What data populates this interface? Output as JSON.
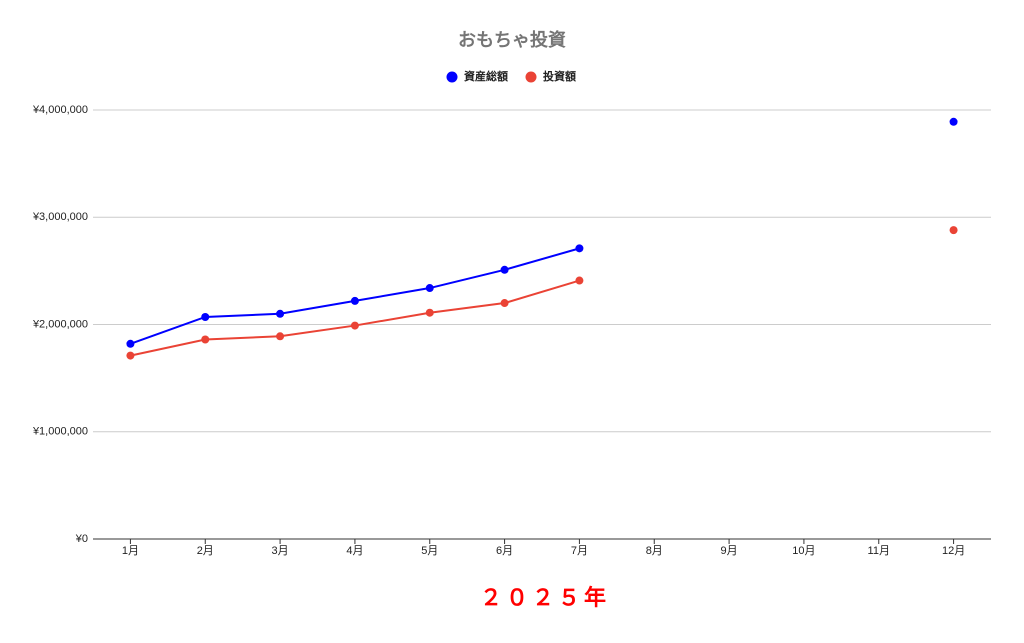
{
  "chart_data": {
    "type": "line",
    "title": "おもちゃ投資",
    "x_label": "２０２５年",
    "categories": [
      "1月",
      "2月",
      "3月",
      "4月",
      "5月",
      "6月",
      "7月",
      "8月",
      "9月",
      "10月",
      "11月",
      "12月"
    ],
    "series": [
      {
        "name": "資産総額",
        "color": "#0000ff",
        "values": [
          1820000,
          2070000,
          2100000,
          2220000,
          2340000,
          2510000,
          2710000,
          null,
          null,
          null,
          null,
          3890000
        ]
      },
      {
        "name": "投資額",
        "color": "#ea4335",
        "values": [
          1710000,
          1860000,
          1890000,
          1990000,
          2110000,
          2200000,
          2410000,
          null,
          null,
          null,
          null,
          2880000
        ]
      }
    ],
    "ylim": [
      0,
      4000000
    ],
    "yticks": [
      {
        "value": 0,
        "label": "¥0"
      },
      {
        "value": 1000000,
        "label": "¥1,000,000"
      },
      {
        "value": 2000000,
        "label": "¥2,000,000"
      },
      {
        "value": 3000000,
        "label": "¥3,000,000"
      },
      {
        "value": 4000000,
        "label": "¥4,000,000"
      }
    ],
    "grid": true,
    "legend": "top"
  }
}
